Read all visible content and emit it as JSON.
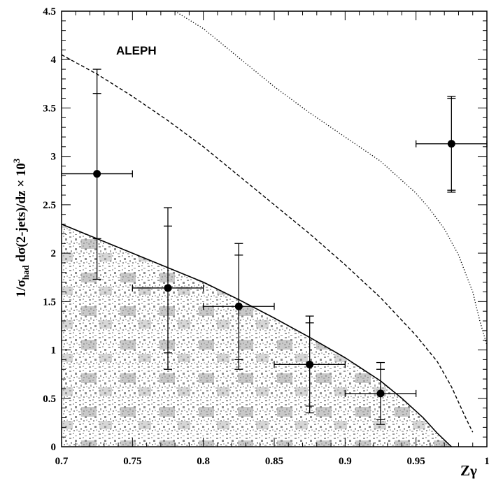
{
  "chart_data": {
    "type": "scatter",
    "experiment_label": "ALEPH",
    "xlabel": "Zγ",
    "ylabel": {
      "prefix": "1/σ",
      "subscript": "had",
      "middle": " dσ(2-jets)/dz × 10",
      "superscript": "3"
    },
    "xlim": [
      0.7,
      1.0
    ],
    "ylim": [
      0,
      4.5
    ],
    "x_ticks": [
      "0.7",
      "0.75",
      "0.8",
      "0.85",
      "0.9",
      "0.95",
      "1"
    ],
    "y_ticks": [
      "0",
      "0.5",
      "1",
      "1.5",
      "2",
      "2.5",
      "3",
      "3.5",
      "4",
      "4.5"
    ],
    "grid": false,
    "points": [
      {
        "x": 0.725,
        "y": 2.82,
        "xerr": 0.025,
        "y_stat": [
          2.15,
          3.65
        ],
        "y_tot": [
          1.73,
          3.9
        ]
      },
      {
        "x": 0.775,
        "y": 1.64,
        "xerr": 0.025,
        "y_stat": [
          0.97,
          2.28
        ],
        "y_tot": [
          0.8,
          2.47
        ]
      },
      {
        "x": 0.825,
        "y": 1.45,
        "xerr": 0.025,
        "y_stat": [
          0.9,
          1.98
        ],
        "y_tot": [
          0.8,
          2.1
        ]
      },
      {
        "x": 0.875,
        "y": 0.85,
        "xerr": 0.025,
        "y_stat": [
          0.42,
          1.28
        ],
        "y_tot": [
          0.35,
          1.35
        ]
      },
      {
        "x": 0.925,
        "y": 0.55,
        "xerr": 0.025,
        "y_stat": [
          0.28,
          0.8
        ],
        "y_tot": [
          0.23,
          0.87
        ]
      },
      {
        "x": 0.975,
        "y": 3.13,
        "xerr": 0.025,
        "y_stat": [
          2.65,
          3.6
        ],
        "y_tot": [
          2.63,
          3.62
        ]
      }
    ],
    "curves": [
      {
        "style": "solid",
        "x": [
          0.7,
          0.725,
          0.75,
          0.775,
          0.8,
          0.825,
          0.85,
          0.875,
          0.9,
          0.925,
          0.94,
          0.955,
          0.965,
          0.975
        ],
        "y": [
          2.3,
          2.15,
          2.0,
          1.85,
          1.7,
          1.52,
          1.33,
          1.13,
          0.92,
          0.68,
          0.5,
          0.3,
          0.14,
          0.0
        ]
      },
      {
        "style": "dashed",
        "x": [
          0.7,
          0.725,
          0.75,
          0.775,
          0.8,
          0.825,
          0.85,
          0.875,
          0.9,
          0.925,
          0.95,
          0.965,
          0.975,
          0.985,
          0.99
        ],
        "y": [
          4.05,
          3.85,
          3.62,
          3.37,
          3.1,
          2.8,
          2.5,
          2.2,
          1.88,
          1.54,
          1.15,
          0.88,
          0.62,
          0.3,
          0.15
        ]
      },
      {
        "style": "dotted",
        "x": [
          0.78,
          0.8,
          0.825,
          0.85,
          0.875,
          0.9,
          0.925,
          0.95,
          0.96,
          0.97,
          0.98,
          0.99,
          0.995,
          1.0
        ],
        "y": [
          4.5,
          4.32,
          4.02,
          3.72,
          3.45,
          3.2,
          2.95,
          2.62,
          2.45,
          2.25,
          1.98,
          1.6,
          1.3,
          1.05
        ]
      }
    ],
    "shaded_region": "below solid curve, grey speckled texture"
  }
}
